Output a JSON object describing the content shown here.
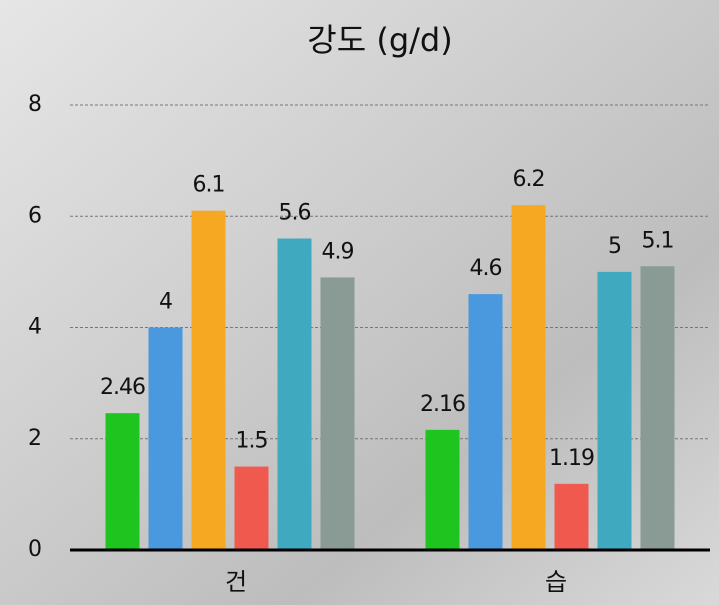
{
  "chart_data": {
    "type": "bar",
    "title": "강도 (g/d)",
    "categories": [
      "건",
      "습"
    ],
    "series": [
      {
        "color": "#1fc41f",
        "values": [
          2.46,
          2.16
        ]
      },
      {
        "color": "#4a98de",
        "values": [
          4,
          4.6
        ]
      },
      {
        "color": "#f7a823",
        "values": [
          6.1,
          6.2
        ]
      },
      {
        "color": "#f05a4e",
        "values": [
          1.5,
          1.19
        ]
      },
      {
        "color": "#3fa9c0",
        "values": [
          5.6,
          5
        ]
      },
      {
        "color": "#8a9a95",
        "values": [
          4.9,
          5.1
        ]
      }
    ],
    "ylim": [
      0,
      8
    ],
    "yticks": [
      0,
      2,
      4,
      6,
      8
    ],
    "grid": true
  }
}
